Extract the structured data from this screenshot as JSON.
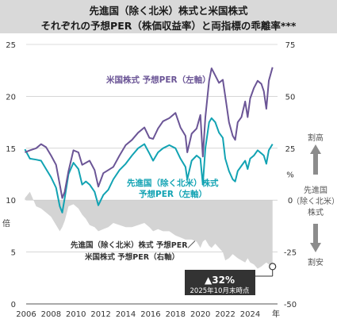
{
  "title_line1": "先進国（除く北米）株式と米国株式",
  "title_line2": "それぞれの予想PER（株価収益率）と両指標の乖離率***",
  "chart_data": {
    "type": "line",
    "title": "先進国（除く北米）株式と米国株式 それぞれの予想PER（株価収益率）と両指標の乖離率***",
    "xlabel": "年",
    "x_ticks": [
      "2006",
      "2008",
      "2010",
      "2012",
      "2014",
      "2016",
      "2018",
      "2020",
      "2022",
      "2024"
    ],
    "ylabel_left": "倍",
    "ylabel_right": "%",
    "ylim_left": [
      0,
      25
    ],
    "yticks_left": [
      0,
      5,
      10,
      15,
      20,
      25
    ],
    "ylim_right": [
      -50,
      75
    ],
    "yticks_right": [
      -50,
      -25,
      0,
      25,
      50,
      75
    ],
    "grid": "horizontal",
    "series": [
      {
        "name": "米国株式 予想PER（左軸）",
        "axis": "left",
        "color": "#6b5596",
        "points": [
          [
            2005.9,
            14.6
          ],
          [
            2006.3,
            14.8
          ],
          [
            2006.8,
            15.0
          ],
          [
            2007.2,
            15.4
          ],
          [
            2007.6,
            15.1
          ],
          [
            2008.0,
            14.3
          ],
          [
            2008.4,
            13.4
          ],
          [
            2008.7,
            11.5
          ],
          [
            2008.9,
            10.2
          ],
          [
            2009.1,
            10.8
          ],
          [
            2009.4,
            12.8
          ],
          [
            2009.8,
            14.8
          ],
          [
            2010.2,
            14.6
          ],
          [
            2010.5,
            13.4
          ],
          [
            2010.8,
            13.6
          ],
          [
            2011.1,
            13.8
          ],
          [
            2011.5,
            12.9
          ],
          [
            2011.8,
            11.3
          ],
          [
            2012.2,
            12.6
          ],
          [
            2012.6,
            12.9
          ],
          [
            2013.0,
            13.2
          ],
          [
            2013.5,
            14.3
          ],
          [
            2014.0,
            15.3
          ],
          [
            2014.5,
            15.8
          ],
          [
            2015.0,
            16.5
          ],
          [
            2015.5,
            17.0
          ],
          [
            2015.9,
            16.0
          ],
          [
            2016.2,
            15.9
          ],
          [
            2016.6,
            16.9
          ],
          [
            2017.0,
            17.6
          ],
          [
            2017.5,
            17.9
          ],
          [
            2018.0,
            18.4
          ],
          [
            2018.4,
            17.0
          ],
          [
            2018.8,
            16.2
          ],
          [
            2018.95,
            14.6
          ],
          [
            2019.3,
            16.4
          ],
          [
            2019.7,
            16.9
          ],
          [
            2020.0,
            18.2
          ],
          [
            2020.2,
            14.2
          ],
          [
            2020.4,
            18.0
          ],
          [
            2020.7,
            21.5
          ],
          [
            2020.9,
            22.7
          ],
          [
            2021.2,
            22.0
          ],
          [
            2021.5,
            21.3
          ],
          [
            2021.8,
            21.6
          ],
          [
            2022.0,
            20.0
          ],
          [
            2022.3,
            17.5
          ],
          [
            2022.6,
            16.2
          ],
          [
            2022.8,
            15.8
          ],
          [
            2023.0,
            17.5
          ],
          [
            2023.3,
            18.0
          ],
          [
            2023.6,
            19.5
          ],
          [
            2023.8,
            18.0
          ],
          [
            2024.0,
            19.8
          ],
          [
            2024.3,
            20.8
          ],
          [
            2024.6,
            21.5
          ],
          [
            2024.9,
            21.2
          ],
          [
            2025.1,
            20.5
          ],
          [
            2025.3,
            18.8
          ],
          [
            2025.5,
            21.5
          ],
          [
            2025.8,
            22.8
          ]
        ]
      },
      {
        "name": "先進国（除く北米）株式 予想PER（左軸）",
        "axis": "left",
        "color": "#12a3b3",
        "points": [
          [
            2005.9,
            14.9
          ],
          [
            2006.3,
            14.0
          ],
          [
            2006.8,
            13.9
          ],
          [
            2007.2,
            13.8
          ],
          [
            2007.6,
            13.0
          ],
          [
            2008.0,
            12.2
          ],
          [
            2008.4,
            11.2
          ],
          [
            2008.7,
            9.4
          ],
          [
            2008.9,
            8.8
          ],
          [
            2009.1,
            10.2
          ],
          [
            2009.4,
            12.5
          ],
          [
            2009.8,
            13.6
          ],
          [
            2010.2,
            13.0
          ],
          [
            2010.5,
            11.5
          ],
          [
            2010.8,
            11.8
          ],
          [
            2011.1,
            11.5
          ],
          [
            2011.5,
            10.8
          ],
          [
            2011.8,
            9.5
          ],
          [
            2012.2,
            10.5
          ],
          [
            2012.6,
            11.0
          ],
          [
            2013.0,
            12.0
          ],
          [
            2013.5,
            12.9
          ],
          [
            2014.0,
            13.5
          ],
          [
            2014.5,
            14.3
          ],
          [
            2015.0,
            15.0
          ],
          [
            2015.5,
            15.4
          ],
          [
            2015.9,
            14.5
          ],
          [
            2016.2,
            13.8
          ],
          [
            2016.6,
            14.6
          ],
          [
            2017.0,
            15.0
          ],
          [
            2017.5,
            15.3
          ],
          [
            2018.0,
            15.0
          ],
          [
            2018.4,
            14.0
          ],
          [
            2018.8,
            13.2
          ],
          [
            2018.95,
            12.0
          ],
          [
            2019.3,
            13.8
          ],
          [
            2019.7,
            14.3
          ],
          [
            2020.0,
            14.0
          ],
          [
            2020.2,
            11.5
          ],
          [
            2020.4,
            15.0
          ],
          [
            2020.7,
            17.5
          ],
          [
            2020.9,
            17.9
          ],
          [
            2021.2,
            17.5
          ],
          [
            2021.5,
            16.5
          ],
          [
            2021.8,
            16.0
          ],
          [
            2022.0,
            14.0
          ],
          [
            2022.3,
            12.8
          ],
          [
            2022.6,
            12.0
          ],
          [
            2022.8,
            11.8
          ],
          [
            2023.0,
            12.8
          ],
          [
            2023.3,
            13.3
          ],
          [
            2023.6,
            13.8
          ],
          [
            2023.8,
            13.0
          ],
          [
            2024.0,
            14.0
          ],
          [
            2024.3,
            14.3
          ],
          [
            2024.6,
            14.8
          ],
          [
            2024.9,
            14.5
          ],
          [
            2025.1,
            14.3
          ],
          [
            2025.3,
            13.5
          ],
          [
            2025.5,
            14.8
          ],
          [
            2025.8,
            15.4
          ]
        ]
      },
      {
        "name": "先進国（除く北米）株式 予想PER／米国株式 予想PER（右軸）",
        "axis": "right",
        "type": "area",
        "color": "#d4d4d4",
        "points": [
          [
            2005.9,
            1
          ],
          [
            2006.3,
            4
          ],
          [
            2006.8,
            -3
          ],
          [
            2007.2,
            -4
          ],
          [
            2007.6,
            -6
          ],
          [
            2008.0,
            -8
          ],
          [
            2008.4,
            -12
          ],
          [
            2008.7,
            -15
          ],
          [
            2008.9,
            -13
          ],
          [
            2009.1,
            -10
          ],
          [
            2009.4,
            -3
          ],
          [
            2009.8,
            -2
          ],
          [
            2010.2,
            -4
          ],
          [
            2010.5,
            -7
          ],
          [
            2010.8,
            -9
          ],
          [
            2011.1,
            -12
          ],
          [
            2011.5,
            -13
          ],
          [
            2011.8,
            -15
          ],
          [
            2012.2,
            -14
          ],
          [
            2012.6,
            -13
          ],
          [
            2013.0,
            -11
          ],
          [
            2013.5,
            -12
          ],
          [
            2014.0,
            -13
          ],
          [
            2014.5,
            -13
          ],
          [
            2015.0,
            -12
          ],
          [
            2015.5,
            -11
          ],
          [
            2015.9,
            -13
          ],
          [
            2016.2,
            -15
          ],
          [
            2016.6,
            -14
          ],
          [
            2017.0,
            -15
          ],
          [
            2017.5,
            -15
          ],
          [
            2018.0,
            -17
          ],
          [
            2018.4,
            -18
          ],
          [
            2018.8,
            -19
          ],
          [
            2019.3,
            -19
          ],
          [
            2019.7,
            -20
          ],
          [
            2020.0,
            -23
          ],
          [
            2020.2,
            -20
          ],
          [
            2020.4,
            -19
          ],
          [
            2020.7,
            -22
          ],
          [
            2020.9,
            -23
          ],
          [
            2021.2,
            -21
          ],
          [
            2021.5,
            -23
          ],
          [
            2021.8,
            -25
          ],
          [
            2022.0,
            -29
          ],
          [
            2022.3,
            -28
          ],
          [
            2022.6,
            -26
          ],
          [
            2022.8,
            -27
          ],
          [
            2023.0,
            -28
          ],
          [
            2023.3,
            -29
          ],
          [
            2023.6,
            -30
          ],
          [
            2023.8,
            -28
          ],
          [
            2024.0,
            -30
          ],
          [
            2024.3,
            -31
          ],
          [
            2024.6,
            -33
          ],
          [
            2024.9,
            -32
          ],
          [
            2025.1,
            -31
          ],
          [
            2025.3,
            -30
          ],
          [
            2025.5,
            -31
          ],
          [
            2025.8,
            -32
          ]
        ]
      }
    ],
    "annotations": {
      "callout_value": "▲32%",
      "callout_note": "2025年10月末時点",
      "right_arrow_top": "割高",
      "right_arrow_bottom": "割安",
      "right_label": [
        "先進国",
        "（除く北米）",
        "株式"
      ]
    }
  },
  "labels": {
    "us_series": "米国株式 予想PER（左軸）",
    "dev_series_line1": "先進国（除く北米）株式",
    "dev_series_line2": "予想PER（左軸）",
    "ratio_line1": "先進国（除く北米）株式 予想PER／",
    "ratio_line2": "米国株式 予想PER（右軸）"
  }
}
